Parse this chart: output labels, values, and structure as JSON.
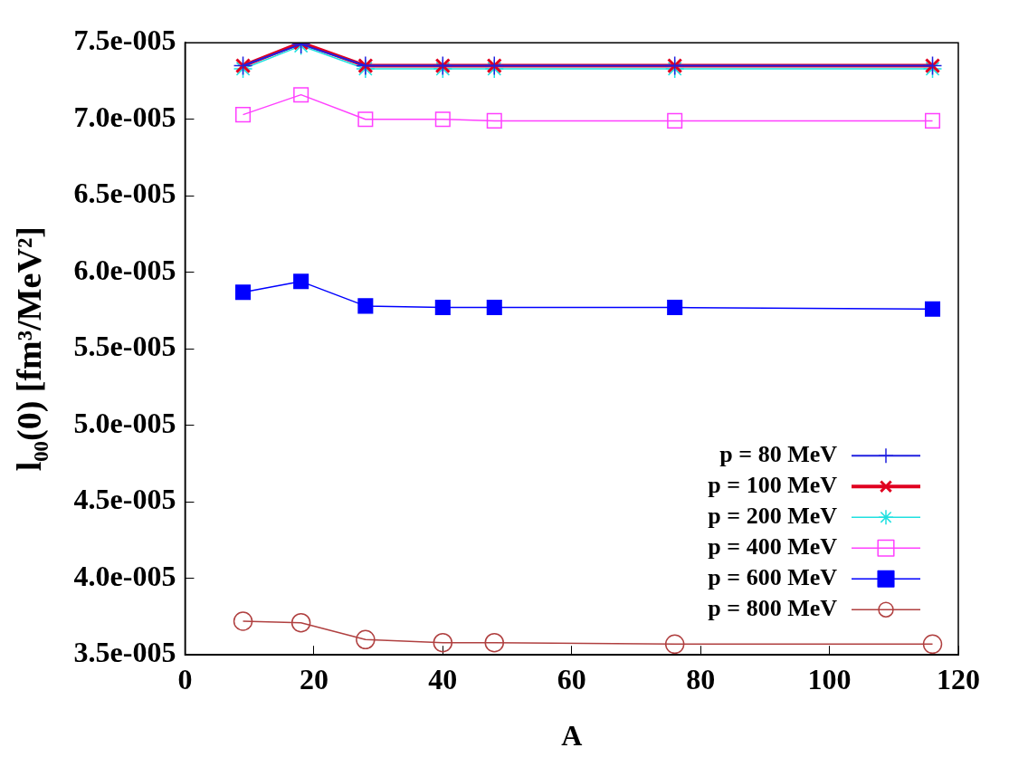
{
  "chart_data": {
    "type": "line",
    "xlabel": "A",
    "ylabel": "l₀₀(0) [fm³/MeV²]",
    "x": [
      9,
      18,
      28,
      40,
      48,
      76,
      116
    ],
    "xlim": [
      0,
      120
    ],
    "xticks": [
      0,
      20,
      40,
      60,
      80,
      100,
      120
    ],
    "ylim": [
      3.5e-05,
      7.5e-05
    ],
    "yticks": [
      {
        "value": 3.5e-05,
        "label": "3.5e-005"
      },
      {
        "value": 4e-05,
        "label": "4.0e-005"
      },
      {
        "value": 4.5e-05,
        "label": "4.5e-005"
      },
      {
        "value": 5e-05,
        "label": "5.0e-005"
      },
      {
        "value": 5.5e-05,
        "label": "5.5e-005"
      },
      {
        "value": 6e-05,
        "label": "6.0e-005"
      },
      {
        "value": 6.5e-05,
        "label": "6.5e-005"
      },
      {
        "value": 7e-05,
        "label": "7.0e-005"
      },
      {
        "value": 7.5e-05,
        "label": "7.5e-005"
      }
    ],
    "grid": false,
    "legend": "bottom right",
    "line_style": "solid",
    "series": [
      {
        "name": "p = 80 MeV",
        "color": "#2020e0",
        "marker": "cross",
        "values": [
          7.35e-05,
          7.49e-05,
          7.35e-05,
          7.35e-05,
          7.35e-05,
          7.35e-05,
          7.35e-05
        ]
      },
      {
        "name": "p = 100 MeV",
        "color": "#e00020",
        "marker": "cross",
        "values": [
          7.35e-05,
          7.5e-05,
          7.35e-05,
          7.35e-05,
          7.35e-05,
          7.35e-05,
          7.35e-05
        ]
      },
      {
        "name": "p = 200 MeV",
        "color": "#20e0e0",
        "marker": "cross",
        "values": [
          7.33e-05,
          7.48e-05,
          7.33e-05,
          7.33e-05,
          7.33e-05,
          7.33e-05,
          7.33e-05
        ]
      },
      {
        "name": "p = 400 MeV",
        "color": "#ff40ff",
        "marker": "square",
        "values": [
          7.03e-05,
          7.16e-05,
          7e-05,
          7e-05,
          6.99e-05,
          6.99e-05,
          6.99e-05
        ]
      },
      {
        "name": "p = 600 MeV",
        "color": "#0000ff",
        "marker": "square",
        "values": [
          5.87e-05,
          5.94e-05,
          5.78e-05,
          5.77e-05,
          5.77e-05,
          5.77e-05,
          5.76e-05
        ]
      },
      {
        "name": "p = 800 MeV",
        "color": "#b04040",
        "marker": "circle",
        "values": [
          3.72e-05,
          3.71e-05,
          3.6e-05,
          3.58e-05,
          3.58e-05,
          3.57e-05,
          3.57e-05
        ]
      }
    ]
  }
}
